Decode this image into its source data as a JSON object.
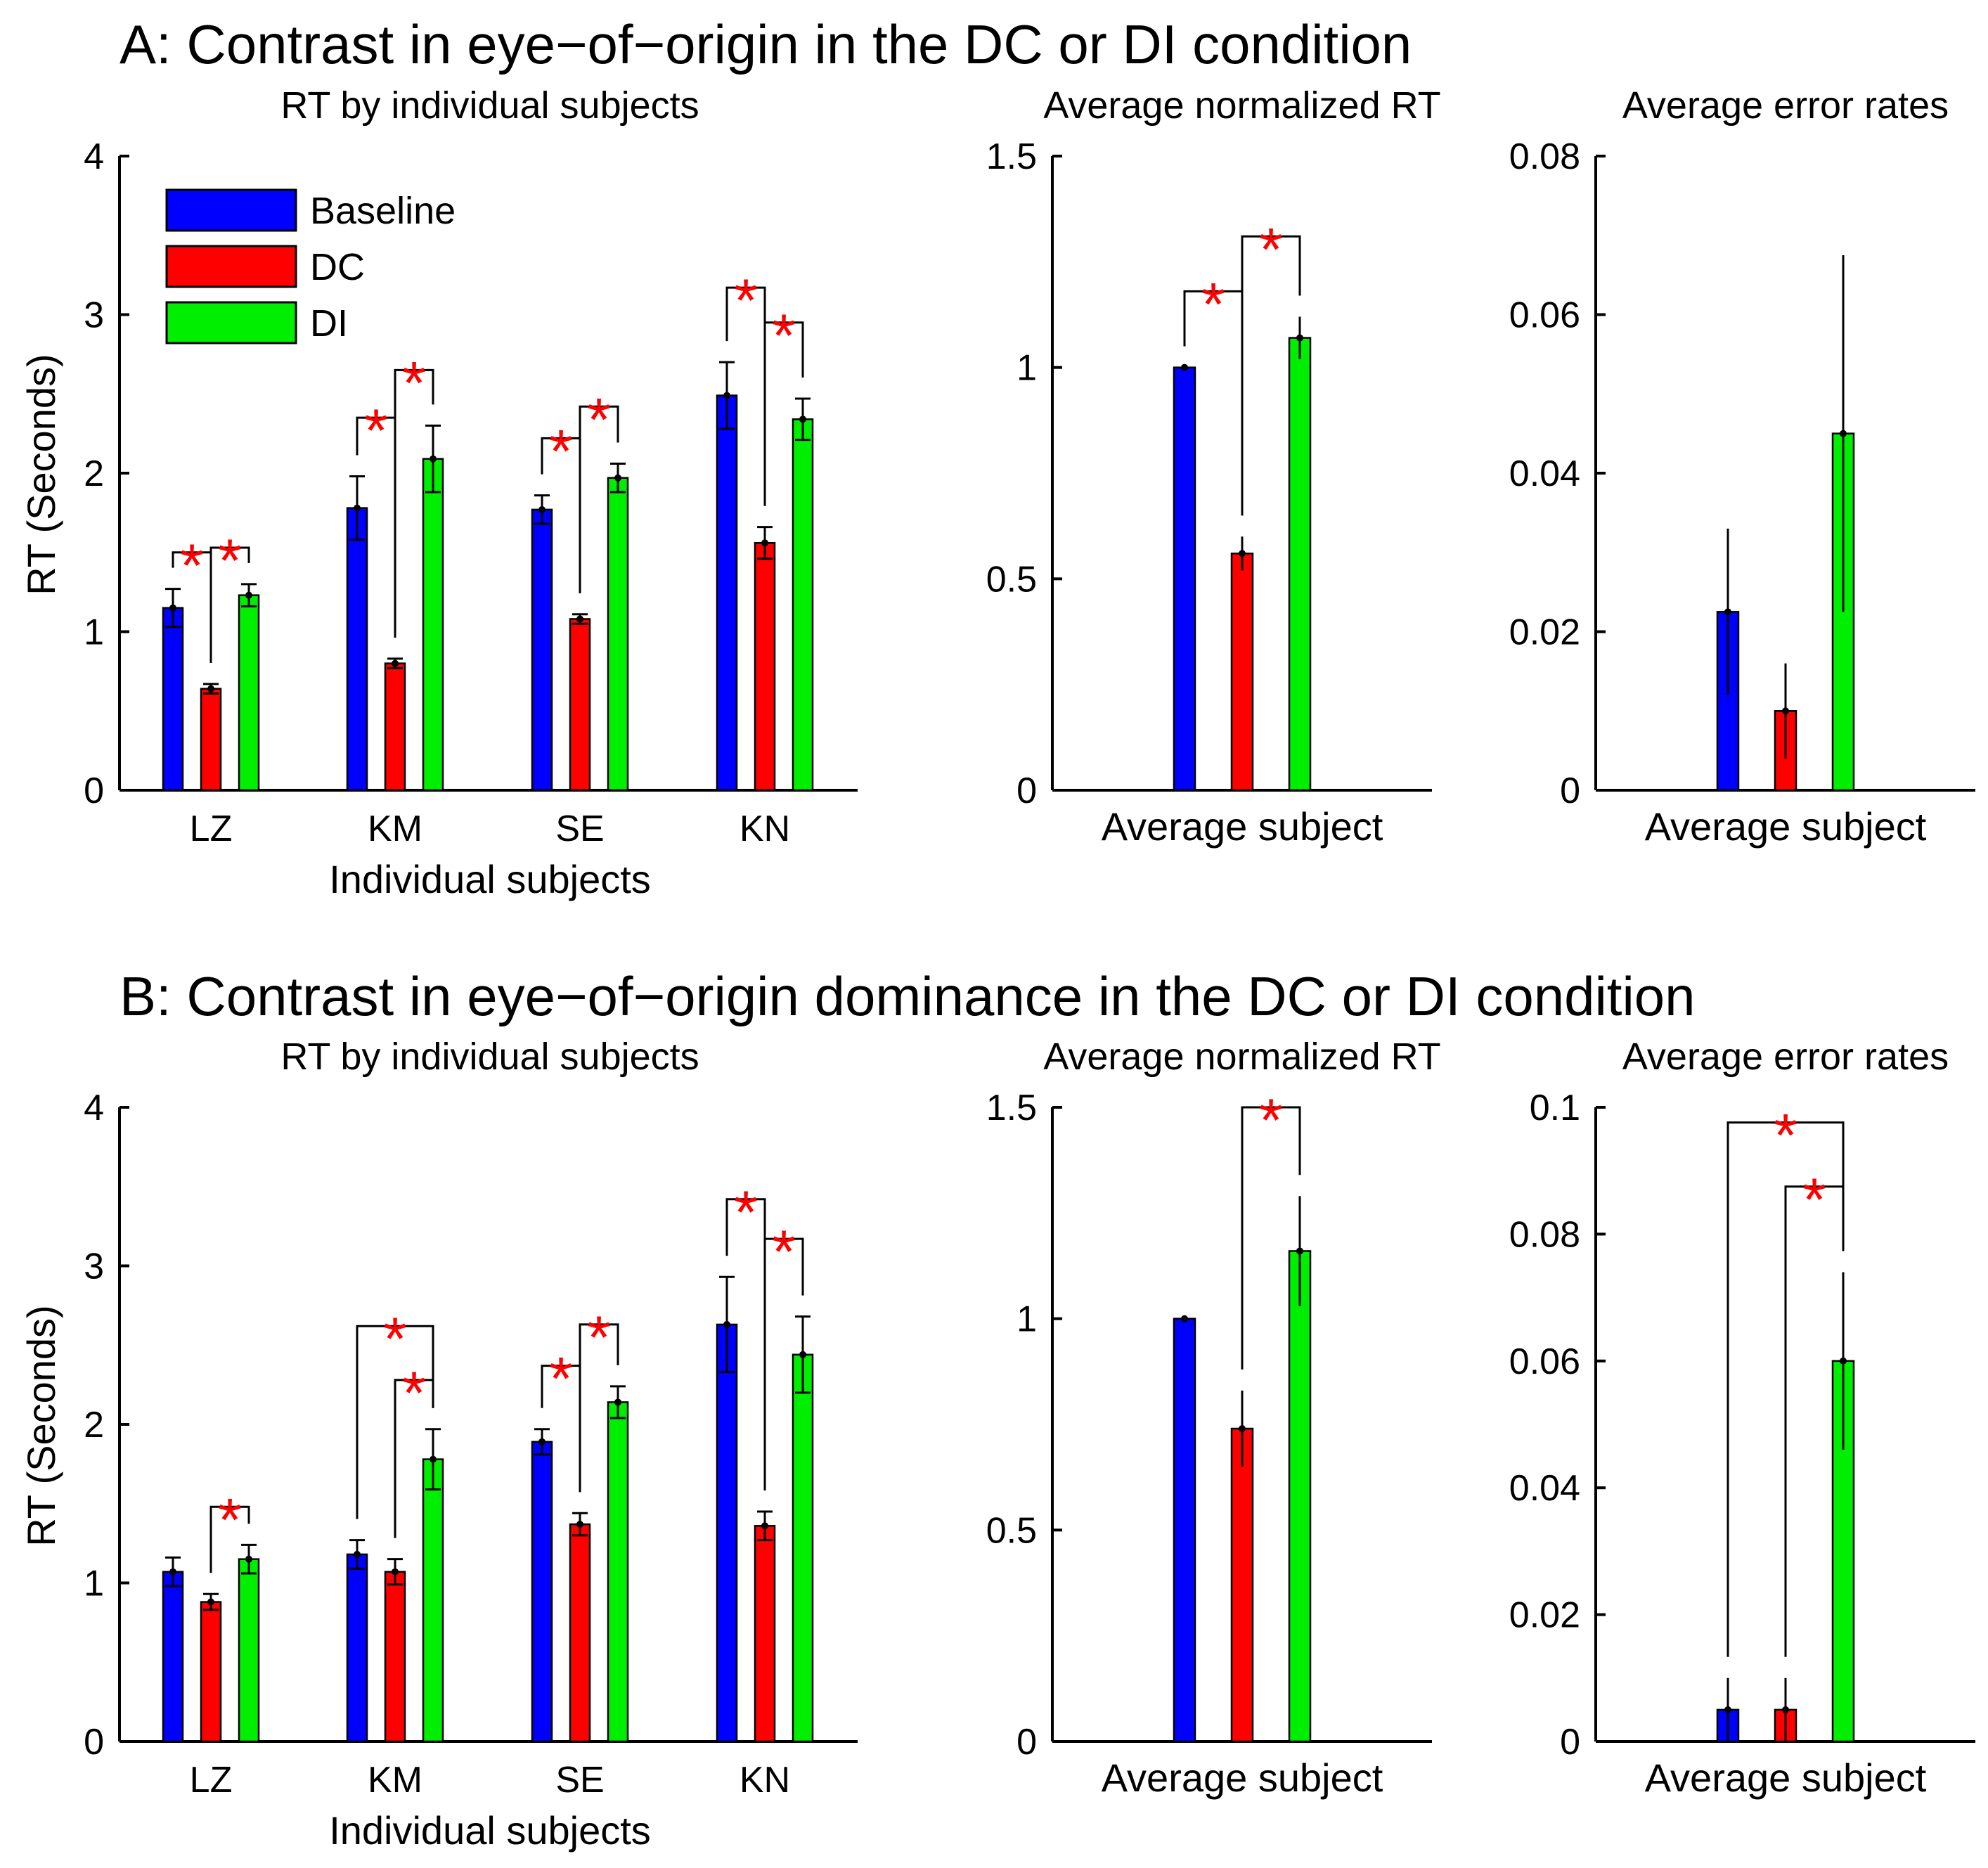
{
  "colors": {
    "baseline": "#0000ff",
    "dc": "#ff0000",
    "di": "#00ee00",
    "star": "#ff0000"
  },
  "legend": {
    "baseline": "Baseline",
    "dc": "DC",
    "di": "DI"
  },
  "panel_a": {
    "title": "A: Contrast in eye−of−origin in the DC or DI condition",
    "rt_subtitle": "RT by individual subjects",
    "norm_subtitle": "Average normalized RT",
    "err_subtitle": "Average error rates",
    "rt_ylabel": "RT (Seconds)",
    "rt_xlabel": "Individual subjects",
    "avg_xlabel": "Average subject",
    "avg_xlabel2": "Average subject"
  },
  "panel_b": {
    "title": "B: Contrast in eye−of−origin dominance in the DC or DI condition",
    "rt_subtitle": "RT by individual subjects",
    "norm_subtitle": "Average normalized RT",
    "err_subtitle": "Average error rates",
    "rt_ylabel": "RT (Seconds)",
    "rt_xlabel": "Individual subjects",
    "avg_xlabel": "Average subject",
    "avg_xlabel2": "Average subject"
  },
  "chart_data": [
    {
      "id": "a_rt",
      "type": "bar",
      "title": "RT by individual subjects",
      "xlabel": "Individual subjects",
      "ylabel": "RT (Seconds)",
      "ylim": [
        0,
        4
      ],
      "yticks": [
        0,
        1,
        2,
        3,
        4
      ],
      "ytick_labels": [
        "0",
        "1",
        "2",
        "3",
        "4"
      ],
      "categories": [
        "LZ",
        "KM",
        "SE",
        "KN"
      ],
      "series": [
        {
          "name": "Baseline",
          "values": [
            1.15,
            1.78,
            1.77,
            2.49
          ],
          "errors": [
            0.12,
            0.2,
            0.09,
            0.21
          ]
        },
        {
          "name": "DC",
          "values": [
            0.64,
            0.8,
            1.08,
            1.56
          ],
          "errors": [
            0.03,
            0.03,
            0.03,
            0.1
          ]
        },
        {
          "name": "DI",
          "values": [
            1.23,
            2.09,
            1.97,
            2.34
          ],
          "errors": [
            0.07,
            0.21,
            0.09,
            0.13
          ]
        }
      ],
      "significance": [
        {
          "category": "LZ",
          "from": "Baseline",
          "to": "DC",
          "level": 1.5
        },
        {
          "category": "LZ",
          "from": "DC",
          "to": "DI",
          "level": 1.53
        },
        {
          "category": "KM",
          "from": "Baseline",
          "to": "DC",
          "level": 2.35
        },
        {
          "category": "KM",
          "from": "DC",
          "to": "DI",
          "level": 2.65
        },
        {
          "category": "SE",
          "from": "Baseline",
          "to": "DC",
          "level": 2.22
        },
        {
          "category": "SE",
          "from": "DC",
          "to": "DI",
          "level": 2.42
        },
        {
          "category": "KN",
          "from": "Baseline",
          "to": "DC",
          "level": 3.17
        },
        {
          "category": "KN",
          "from": "DC",
          "to": "DI",
          "level": 2.95
        }
      ]
    },
    {
      "id": "a_norm",
      "type": "bar",
      "title": "Average normalized RT",
      "xlabel": "Average subject",
      "ylabel": "",
      "ylim": [
        0,
        1.5
      ],
      "yticks": [
        0,
        0.5,
        1,
        1.5
      ],
      "ytick_labels": [
        "0",
        "0.5",
        "1",
        "1.5"
      ],
      "categories": [
        "Average subject"
      ],
      "series": [
        {
          "name": "Baseline",
          "values": [
            1.0
          ],
          "errors": [
            0.0
          ]
        },
        {
          "name": "DC",
          "values": [
            0.56
          ],
          "errors": [
            0.04
          ]
        },
        {
          "name": "DI",
          "values": [
            1.07
          ],
          "errors": [
            0.05
          ]
        }
      ],
      "significance": [
        {
          "category": "Average subject",
          "from": "Baseline",
          "to": "DC",
          "level": 1.18
        },
        {
          "category": "Average subject",
          "from": "DC",
          "to": "DI",
          "level": 1.31
        }
      ]
    },
    {
      "id": "a_err",
      "type": "bar",
      "title": "Average error rates",
      "xlabel": "Average subject",
      "ylabel": "",
      "ylim": [
        0,
        0.08
      ],
      "yticks": [
        0,
        0.02,
        0.04,
        0.06,
        0.08
      ],
      "ytick_labels": [
        "0",
        "0.02",
        "0.04",
        "0.06",
        "0.08"
      ],
      "categories": [
        "Average subject"
      ],
      "series": [
        {
          "name": "Baseline",
          "values": [
            0.0225
          ],
          "errors": [
            0.0105
          ]
        },
        {
          "name": "DC",
          "values": [
            0.01
          ],
          "errors": [
            0.006
          ]
        },
        {
          "name": "DI",
          "values": [
            0.045
          ],
          "errors": [
            0.0225
          ]
        }
      ],
      "significance": []
    },
    {
      "id": "b_rt",
      "type": "bar",
      "title": "RT by individual subjects",
      "xlabel": "Individual subjects",
      "ylabel": "RT (Seconds)",
      "ylim": [
        0,
        4
      ],
      "yticks": [
        0,
        1,
        2,
        3,
        4
      ],
      "ytick_labels": [
        "0",
        "1",
        "2",
        "3",
        "4"
      ],
      "categories": [
        "LZ",
        "KM",
        "SE",
        "KN"
      ],
      "series": [
        {
          "name": "Baseline",
          "values": [
            1.07,
            1.18,
            1.89,
            2.63
          ],
          "errors": [
            0.09,
            0.09,
            0.08,
            0.3
          ]
        },
        {
          "name": "DC",
          "values": [
            0.88,
            1.07,
            1.37,
            1.36
          ],
          "errors": [
            0.05,
            0.08,
            0.07,
            0.09
          ]
        },
        {
          "name": "DI",
          "values": [
            1.15,
            1.78,
            2.14,
            2.44
          ],
          "errors": [
            0.09,
            0.19,
            0.1,
            0.24
          ]
        }
      ],
      "significance": [
        {
          "category": "LZ",
          "from": "DC",
          "to": "DI",
          "level": 1.48
        },
        {
          "category": "KM",
          "from": "Baseline",
          "to": "DI",
          "level": 2.62
        },
        {
          "category": "KM",
          "from": "DC",
          "to": "DI",
          "level": 2.28
        },
        {
          "category": "SE",
          "from": "Baseline",
          "to": "DC",
          "level": 2.37
        },
        {
          "category": "SE",
          "from": "DC",
          "to": "DI",
          "level": 2.63
        },
        {
          "category": "KN",
          "from": "Baseline",
          "to": "DC",
          "level": 3.42
        },
        {
          "category": "KN",
          "from": "DC",
          "to": "DI",
          "level": 3.17
        }
      ]
    },
    {
      "id": "b_norm",
      "type": "bar",
      "title": "Average normalized RT",
      "xlabel": "Average subject",
      "ylabel": "",
      "ylim": [
        0,
        1.5
      ],
      "yticks": [
        0,
        0.5,
        1,
        1.5
      ],
      "ytick_labels": [
        "0",
        "0.5",
        "1",
        "1.5"
      ],
      "categories": [
        "Average subject"
      ],
      "series": [
        {
          "name": "Baseline",
          "values": [
            1.0
          ],
          "errors": [
            0.0
          ]
        },
        {
          "name": "DC",
          "values": [
            0.74
          ],
          "errors": [
            0.09
          ]
        },
        {
          "name": "DI",
          "values": [
            1.16
          ],
          "errors": [
            0.13
          ]
        }
      ],
      "significance": [
        {
          "category": "Average subject",
          "from": "DC",
          "to": "DI",
          "level": 1.5
        }
      ]
    },
    {
      "id": "b_err",
      "type": "bar",
      "title": "Average error rates",
      "xlabel": "Average subject",
      "ylabel": "",
      "ylim": [
        0,
        0.1
      ],
      "yticks": [
        0,
        0.02,
        0.04,
        0.06,
        0.08,
        0.1
      ],
      "ytick_labels": [
        "0",
        "0.02",
        "0.04",
        "0.06",
        "0.08",
        "0.1"
      ],
      "categories": [
        "Average subject"
      ],
      "series": [
        {
          "name": "Baseline",
          "values": [
            0.005
          ],
          "errors": [
            0.005
          ]
        },
        {
          "name": "DC",
          "values": [
            0.005
          ],
          "errors": [
            0.005
          ]
        },
        {
          "name": "DI",
          "values": [
            0.06
          ],
          "errors": [
            0.014
          ]
        }
      ],
      "significance": [
        {
          "category": "Average subject",
          "from": "Baseline",
          "to": "DI",
          "level": 0.0976
        },
        {
          "category": "Average subject",
          "from": "DC",
          "to": "DI",
          "level": 0.0875
        }
      ]
    }
  ]
}
